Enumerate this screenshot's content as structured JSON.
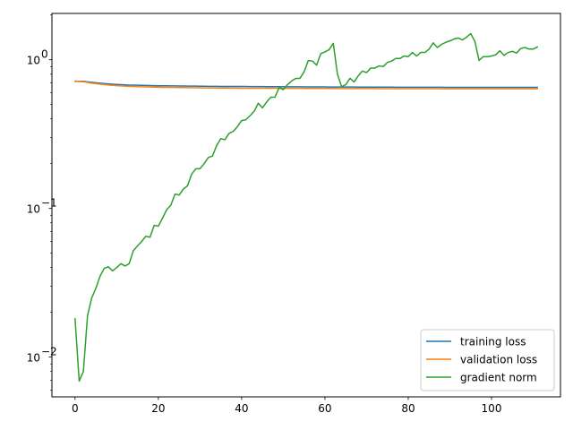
{
  "chart_data": {
    "type": "line",
    "title": "",
    "xlabel": "",
    "ylabel": "",
    "xlim": [
      -5.55,
      116.55
    ],
    "ylim": [
      0.0054,
      2.05
    ],
    "yscale": "log",
    "x_ticks": [
      0,
      20,
      40,
      60,
      80,
      100
    ],
    "x_tick_labels": [
      "0",
      "20",
      "40",
      "60",
      "80",
      "100"
    ],
    "y_major_ticks": [
      0.01,
      0.1,
      1
    ],
    "y_tick_labels": [
      "10",
      "10",
      "10"
    ],
    "y_tick_exponents": [
      "−2",
      "−1",
      "0"
    ],
    "grid": false,
    "legend_position": "lower right",
    "series": [
      {
        "name": "training loss",
        "color": "#1f77b4",
        "x_start": 0,
        "values": [
          0.718,
          0.717,
          0.716,
          0.711,
          0.705,
          0.7,
          0.696,
          0.692,
          0.688,
          0.685,
          0.682,
          0.68,
          0.678,
          0.676,
          0.675,
          0.674,
          0.673,
          0.672,
          0.671,
          0.67,
          0.669,
          0.669,
          0.668,
          0.667,
          0.667,
          0.666,
          0.666,
          0.665,
          0.665,
          0.665,
          0.664,
          0.664,
          0.663,
          0.663,
          0.663,
          0.662,
          0.662,
          0.662,
          0.661,
          0.661,
          0.661,
          0.661,
          0.66,
          0.66,
          0.66,
          0.66,
          0.659,
          0.659,
          0.659,
          0.659,
          0.658,
          0.658,
          0.658,
          0.658,
          0.658,
          0.657,
          0.657,
          0.657,
          0.657,
          0.657,
          0.657,
          0.656,
          0.656,
          0.656,
          0.656,
          0.656,
          0.656,
          0.656,
          0.655,
          0.655,
          0.655,
          0.655,
          0.655,
          0.655,
          0.655,
          0.655,
          0.655,
          0.654,
          0.654,
          0.654,
          0.654,
          0.654,
          0.654,
          0.654,
          0.654,
          0.654,
          0.654,
          0.654,
          0.654,
          0.653,
          0.653,
          0.653,
          0.653,
          0.653,
          0.653,
          0.653,
          0.653,
          0.653,
          0.653,
          0.653,
          0.653,
          0.653,
          0.653,
          0.653,
          0.653,
          0.652,
          0.652,
          0.652,
          0.652,
          0.652,
          0.652,
          0.652
        ]
      },
      {
        "name": "validation loss",
        "color": "#ff7f0e",
        "x_start": 0,
        "values": [
          0.715,
          0.714,
          0.712,
          0.704,
          0.697,
          0.691,
          0.686,
          0.681,
          0.677,
          0.673,
          0.67,
          0.667,
          0.665,
          0.663,
          0.661,
          0.659,
          0.658,
          0.657,
          0.656,
          0.655,
          0.654,
          0.653,
          0.652,
          0.651,
          0.651,
          0.65,
          0.65,
          0.649,
          0.649,
          0.648,
          0.648,
          0.647,
          0.647,
          0.647,
          0.646,
          0.646,
          0.646,
          0.645,
          0.645,
          0.645,
          0.644,
          0.644,
          0.644,
          0.644,
          0.643,
          0.643,
          0.643,
          0.643,
          0.643,
          0.642,
          0.642,
          0.642,
          0.642,
          0.642,
          0.642,
          0.641,
          0.641,
          0.641,
          0.641,
          0.641,
          0.641,
          0.641,
          0.641,
          0.64,
          0.64,
          0.64,
          0.64,
          0.64,
          0.64,
          0.64,
          0.64,
          0.64,
          0.64,
          0.639,
          0.639,
          0.639,
          0.639,
          0.639,
          0.639,
          0.639,
          0.639,
          0.639,
          0.639,
          0.639,
          0.639,
          0.639,
          0.639,
          0.639,
          0.638,
          0.638,
          0.638,
          0.638,
          0.638,
          0.638,
          0.638,
          0.638,
          0.638,
          0.638,
          0.638,
          0.638,
          0.638,
          0.638,
          0.638,
          0.638,
          0.638,
          0.638,
          0.638,
          0.638,
          0.638,
          0.638,
          0.638,
          0.638
        ]
      },
      {
        "name": "gradient norm",
        "color": "#2ca02c",
        "x_start": 0,
        "values": [
          0.0181,
          0.0069,
          0.008,
          0.019,
          0.025,
          0.029,
          0.035,
          0.0395,
          0.0405,
          0.038,
          0.04,
          0.0425,
          0.041,
          0.0425,
          0.052,
          0.056,
          0.06,
          0.065,
          0.064,
          0.077,
          0.076,
          0.086,
          0.098,
          0.105,
          0.125,
          0.123,
          0.135,
          0.142,
          0.17,
          0.185,
          0.185,
          0.2,
          0.22,
          0.225,
          0.265,
          0.295,
          0.29,
          0.32,
          0.33,
          0.355,
          0.39,
          0.395,
          0.42,
          0.45,
          0.51,
          0.475,
          0.52,
          0.56,
          0.56,
          0.65,
          0.63,
          0.68,
          0.72,
          0.75,
          0.75,
          0.83,
          0.99,
          0.98,
          0.92,
          1.1,
          1.13,
          1.17,
          1.29,
          0.8,
          0.66,
          0.68,
          0.75,
          0.71,
          0.78,
          0.84,
          0.82,
          0.88,
          0.88,
          0.91,
          0.9,
          0.96,
          0.98,
          1.02,
          1.02,
          1.06,
          1.05,
          1.12,
          1.06,
          1.12,
          1.12,
          1.18,
          1.3,
          1.21,
          1.27,
          1.31,
          1.34,
          1.38,
          1.4,
          1.36,
          1.42,
          1.5,
          1.33,
          0.99,
          1.05,
          1.05,
          1.06,
          1.08,
          1.15,
          1.07,
          1.12,
          1.14,
          1.11,
          1.19,
          1.21,
          1.18,
          1.18,
          1.22
        ]
      }
    ]
  }
}
